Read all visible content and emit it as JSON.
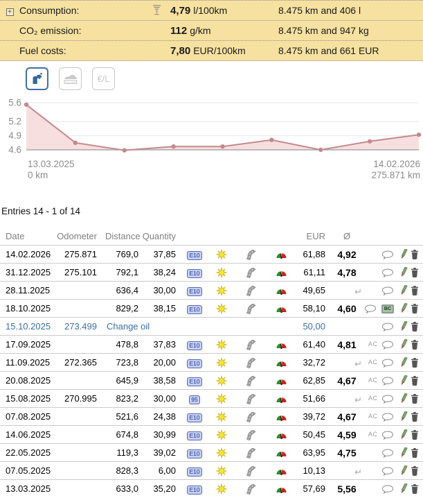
{
  "summary": {
    "rows": [
      {
        "label": "Consumption:",
        "value": "4,79",
        "unit": "l/100km",
        "total": "8.475 km and 406 l"
      },
      {
        "label": "CO₂ emission:",
        "value": "112",
        "unit": "g/km",
        "total": "8.475 km and 947 kg"
      },
      {
        "label": "Fuel costs:",
        "value": "7,80",
        "unit": "EUR/100km",
        "total": "8.475 km and 661 EUR"
      }
    ]
  },
  "tabs": [
    {
      "name": "fuel-consumption",
      "selected": true
    },
    {
      "name": "distance",
      "selected": false
    },
    {
      "name": "fuel-price",
      "selected": false,
      "label": "€/L"
    }
  ],
  "chart_data": {
    "type": "area",
    "ylabel": "l/100km",
    "ylim": [
      4.6,
      5.66
    ],
    "yticks": [
      4.6,
      4.9,
      5.2,
      5.6
    ],
    "grid": true,
    "line_color": "#c4898d",
    "fill_color": "#f8dfdf",
    "x_axis": {
      "left_date": "13.03.2025",
      "left_km": "0 km",
      "right_date": "14.02.2026",
      "right_km": "275.871 km"
    },
    "points": [
      {
        "x_fraction": 0.0,
        "value": 5.56
      },
      {
        "x_fraction": 0.125,
        "value": 4.75
      },
      {
        "x_fraction": 0.25,
        "value": 4.59
      },
      {
        "x_fraction": 0.375,
        "value": 4.67
      },
      {
        "x_fraction": 0.5,
        "value": 4.67
      },
      {
        "x_fraction": 0.625,
        "value": 4.81
      },
      {
        "x_fraction": 0.75,
        "value": 4.6
      },
      {
        "x_fraction": 0.875,
        "value": 4.78
      },
      {
        "x_fraction": 1.0,
        "value": 4.92
      }
    ]
  },
  "entries_label": "Entries 14 - 1 of 14",
  "table": {
    "headers": [
      "Date",
      "Odometer",
      "Distance",
      "Quantity",
      "",
      "",
      "",
      "",
      "EUR",
      "Ø",
      "",
      ""
    ],
    "partial_marker": "↵",
    "ac_label": "AC",
    "bc_label": "BC",
    "rows": [
      {
        "type": "fuel",
        "date": "14.02.2026",
        "odometer": "275.871",
        "distance": "769,0",
        "quantity": "37,85",
        "fuel": "E10",
        "eur": "61,88",
        "avg": "4,92",
        "partial": false,
        "ac": false,
        "bc": false
      },
      {
        "type": "fuel",
        "date": "31.12.2025",
        "odometer": "275.101",
        "distance": "792,1",
        "quantity": "38,24",
        "fuel": "E10",
        "eur": "61,11",
        "avg": "4,78",
        "partial": false,
        "ac": false,
        "bc": false
      },
      {
        "type": "fuel",
        "date": "28.11.2025",
        "odometer": "",
        "distance": "636,4",
        "quantity": "30,00",
        "fuel": "E10",
        "eur": "49,65",
        "avg": "",
        "partial": true,
        "ac": false,
        "bc": false
      },
      {
        "type": "fuel",
        "date": "18.10.2025",
        "odometer": "",
        "distance": "829,2",
        "quantity": "38,15",
        "fuel": "E10",
        "eur": "58,10",
        "avg": "4,60",
        "partial": false,
        "ac": false,
        "bc": true
      },
      {
        "type": "service",
        "date": "15.10.2025",
        "odometer": "273.499",
        "note": "Change oil",
        "distance": "",
        "quantity": "",
        "eur": "50,00",
        "avg": "",
        "partial": false,
        "ac": false,
        "bc": false
      },
      {
        "type": "fuel",
        "date": "17.09.2025",
        "odometer": "",
        "distance": "478,8",
        "quantity": "37,83",
        "fuel": "E10",
        "eur": "61,40",
        "avg": "4,81",
        "partial": false,
        "ac": true,
        "bc": false
      },
      {
        "type": "fuel",
        "date": "11.09.2025",
        "odometer": "272.365",
        "distance": "723,8",
        "quantity": "20,00",
        "fuel": "E10",
        "eur": "32,72",
        "avg": "",
        "partial": true,
        "ac": true,
        "bc": false
      },
      {
        "type": "fuel",
        "date": "20.08.2025",
        "odometer": "",
        "distance": "645,9",
        "quantity": "38,58",
        "fuel": "E10",
        "eur": "62,85",
        "avg": "4,67",
        "partial": false,
        "ac": true,
        "bc": false
      },
      {
        "type": "fuel",
        "date": "15.08.2025",
        "odometer": "270.995",
        "distance": "823,2",
        "quantity": "30,00",
        "fuel": "95",
        "eur": "51,66",
        "avg": "",
        "partial": true,
        "ac": true,
        "bc": false
      },
      {
        "type": "fuel",
        "date": "07.08.2025",
        "odometer": "",
        "distance": "521,6",
        "quantity": "24,38",
        "fuel": "E10",
        "eur": "39,72",
        "avg": "4,67",
        "partial": false,
        "ac": true,
        "bc": false
      },
      {
        "type": "fuel",
        "date": "14.06.2025",
        "odometer": "",
        "distance": "674,8",
        "quantity": "30,99",
        "fuel": "E10",
        "eur": "50,45",
        "avg": "4,59",
        "partial": false,
        "ac": true,
        "bc": false
      },
      {
        "type": "fuel",
        "date": "22.05.2025",
        "odometer": "",
        "distance": "119,3",
        "quantity": "39,02",
        "fuel": "E10",
        "eur": "63,95",
        "avg": "4,75",
        "partial": false,
        "ac": false,
        "bc": false
      },
      {
        "type": "fuel",
        "date": "07.05.2025",
        "odometer": "",
        "distance": "828,3",
        "quantity": "6,00",
        "fuel": "E10",
        "eur": "10,13",
        "avg": "",
        "partial": true,
        "ac": false,
        "bc": false
      },
      {
        "type": "fuel",
        "date": "13.03.2025",
        "odometer": "",
        "distance": "633,0",
        "quantity": "35,20",
        "fuel": "E10",
        "eur": "57,69",
        "avg": "5,56",
        "partial": false,
        "ac": false,
        "bc": false
      }
    ]
  },
  "colors": {
    "summary_background": "#f6e1a0",
    "chart_line": "#c4898d",
    "chart_fill": "#f8dfdf",
    "service_row_text": "#3a6ea8",
    "fuel_badge_background": "#c5d0ef",
    "selected_tab_border": "#41709e"
  }
}
